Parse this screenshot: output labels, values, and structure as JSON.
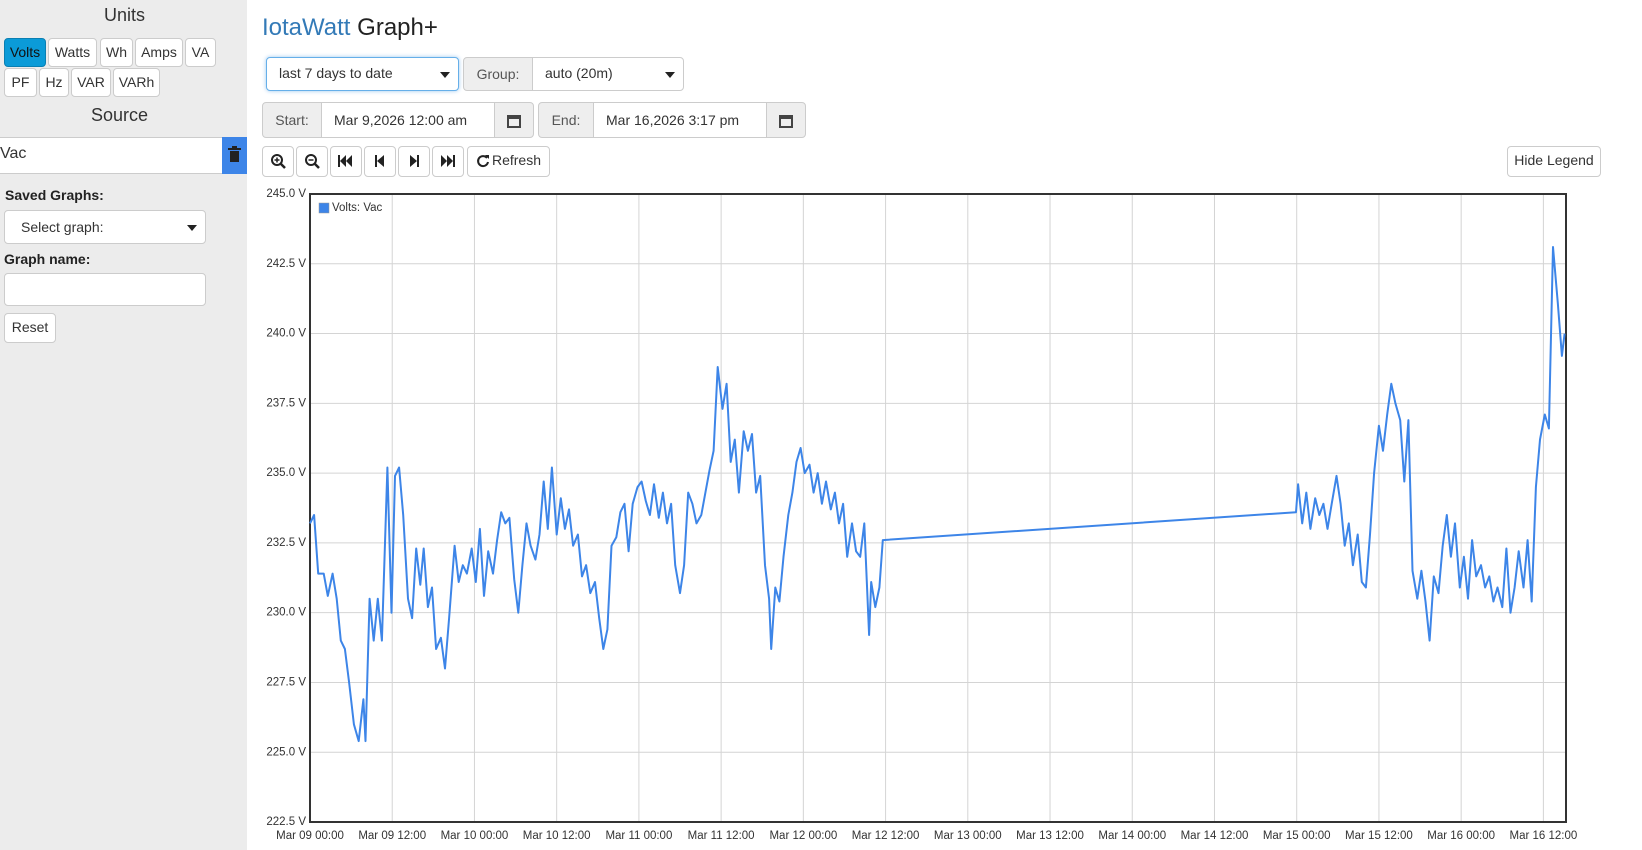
{
  "sidebar": {
    "units_title": "Units",
    "units": [
      "Volts",
      "Watts",
      "Wh",
      "Amps",
      "VA",
      "PF",
      "Hz",
      "VAR",
      "VARh"
    ],
    "source_title": "Source",
    "source": "Vac",
    "saved_graphs_label": "Saved Graphs:",
    "saved_graphs_select": "Select graph:",
    "graph_name_label": "Graph name:",
    "reset": "Reset"
  },
  "header": {
    "title_brand": "IotaWatt",
    "title_rest": "Graph+"
  },
  "controls": {
    "range": "last 7 days to date",
    "group_label": "Group:",
    "group": "auto (20m)",
    "start_label": "Start:",
    "start": "Mar 9,2026 12:00 am",
    "end_label": "End:",
    "end": "Mar 16,2026 3:17 pm",
    "refresh": "Refresh",
    "hide_legend": "Hide Legend"
  },
  "chart_data": {
    "type": "line",
    "color": "#3d85e8",
    "grid": true,
    "legend": "top-left",
    "xlim": [
      0,
      183.3
    ],
    "ylim": [
      222.5,
      245
    ],
    "xticks": [
      {
        "value": 0,
        "label": "Mar 09 00:00"
      },
      {
        "value": 12,
        "label": "Mar 09 12:00"
      },
      {
        "value": 24,
        "label": "Mar 10 00:00"
      },
      {
        "value": 36,
        "label": "Mar 10 12:00"
      },
      {
        "value": 48,
        "label": "Mar 11 00:00"
      },
      {
        "value": 60,
        "label": "Mar 11 12:00"
      },
      {
        "value": 72,
        "label": "Mar 12 00:00"
      },
      {
        "value": 84,
        "label": "Mar 12 12:00"
      },
      {
        "value": 96,
        "label": "Mar 13 00:00"
      },
      {
        "value": 108,
        "label": "Mar 13 12:00"
      },
      {
        "value": 120,
        "label": "Mar 14 00:00"
      },
      {
        "value": 132,
        "label": "Mar 14 12:00"
      },
      {
        "value": 144,
        "label": "Mar 15 00:00"
      },
      {
        "value": 156,
        "label": "Mar 15 12:00"
      },
      {
        "value": 168,
        "label": "Mar 16 00:00"
      },
      {
        "value": 180,
        "label": "Mar 16 12:00"
      }
    ],
    "yticks": [
      {
        "value": 222.5,
        "label": "222.5 V"
      },
      {
        "value": 225,
        "label": "225.0 V"
      },
      {
        "value": 227.5,
        "label": "227.5 V"
      },
      {
        "value": 230,
        "label": "230.0 V"
      },
      {
        "value": 232.5,
        "label": "232.5 V"
      },
      {
        "value": 235,
        "label": "235.0 V"
      },
      {
        "value": 237.5,
        "label": "237.5 V"
      },
      {
        "value": 240,
        "label": "240.0 V"
      },
      {
        "value": 242.5,
        "label": "242.5 V"
      },
      {
        "value": 245,
        "label": "245.0 V"
      }
    ],
    "x": [
      0,
      0.6,
      1.2,
      2.0,
      2.6,
      3.3,
      3.9,
      4.5,
      5.1,
      5.7,
      6.4,
      7.1,
      7.8,
      8.1,
      8.7,
      9.3,
      9.9,
      10.5,
      11.3,
      11.9,
      12.4,
      13.0,
      13.6,
      14.3,
      14.9,
      15.5,
      16.1,
      16.6,
      17.2,
      17.8,
      18.4,
      19.1,
      19.7,
      20.3,
      21.1,
      21.7,
      22.3,
      22.9,
      23.6,
      24.2,
      24.8,
      25.4,
      26.0,
      26.7,
      27.3,
      27.9,
      28.5,
      29.1,
      29.8,
      30.4,
      31.0,
      31.6,
      32.2,
      32.9,
      33.5,
      34.1,
      34.7,
      35.3,
      36.0,
      36.6,
      37.2,
      37.8,
      38.4,
      39.1,
      39.7,
      40.3,
      40.9,
      41.6,
      42.2,
      42.8,
      43.4,
      44.0,
      44.7,
      45.3,
      45.9,
      46.5,
      47.1,
      47.8,
      48.4,
      49.0,
      49.6,
      50.2,
      50.9,
      51.5,
      52.1,
      52.7,
      53.3,
      54.0,
      54.6,
      55.2,
      55.8,
      56.4,
      57.1,
      57.7,
      58.3,
      58.9,
      59.5,
      60.2,
      60.8,
      61.4,
      62.0,
      62.6,
      63.3,
      63.9,
      64.5,
      65.1,
      65.7,
      66.4,
      67.0,
      67.3,
      67.9,
      68.5,
      69.1,
      69.8,
      70.4,
      71.0,
      71.6,
      72.2,
      72.9,
      73.5,
      74.1,
      74.7,
      75.3,
      76.0,
      76.6,
      77.2,
      77.8,
      78.4,
      79.1,
      79.7,
      80.3,
      80.9,
      81.6,
      81.9,
      82.5,
      83.1,
      83.6,
      143.9,
      144.2,
      144.8,
      145.4,
      146.0,
      146.7,
      147.3,
      147.9,
      148.5,
      149.1,
      149.8,
      150.4,
      151.0,
      151.6,
      152.2,
      152.9,
      153.5,
      154.1,
      154.7,
      155.3,
      156.0,
      156.6,
      157.2,
      157.8,
      158.4,
      159.1,
      159.7,
      160.3,
      160.9,
      161.6,
      162.2,
      162.8,
      163.4,
      164.0,
      164.7,
      165.3,
      165.9,
      166.5,
      167.1,
      167.8,
      168.4,
      169.0,
      169.6,
      170.2,
      170.9,
      171.5,
      172.1,
      172.7,
      173.3,
      174.0,
      174.6,
      175.2,
      175.8,
      176.4,
      177.1,
      177.7,
      178.3,
      178.9,
      179.5,
      180.2,
      180.8,
      181.4,
      182.1,
      182.7,
      183.1
    ],
    "series": [
      {
        "name": "Volts: Vac",
        "color": "#3d85e8",
        "values": [
          233.2,
          233.5,
          231.4,
          231.4,
          230.6,
          231.4,
          230.5,
          229.0,
          228.7,
          227.5,
          226.0,
          225.4,
          226.9,
          225.4,
          230.5,
          229.0,
          230.5,
          229.0,
          235.2,
          230.0,
          234.9,
          235.2,
          233.5,
          230.5,
          229.8,
          232.3,
          231.0,
          232.3,
          230.2,
          230.9,
          228.7,
          229.1,
          228.0,
          229.8,
          232.4,
          231.1,
          231.7,
          231.4,
          232.3,
          231.1,
          233.0,
          230.6,
          232.2,
          231.4,
          232.6,
          233.6,
          233.2,
          233.4,
          231.2,
          230.0,
          231.7,
          233.2,
          232.4,
          231.9,
          232.8,
          234.7,
          233.0,
          235.2,
          232.8,
          234.1,
          233.0,
          233.7,
          232.4,
          232.8,
          231.3,
          231.7,
          230.7,
          231.1,
          229.8,
          228.7,
          229.4,
          232.4,
          232.7,
          233.6,
          233.9,
          232.2,
          233.9,
          234.5,
          234.7,
          234.0,
          233.5,
          234.6,
          233.4,
          234.3,
          233.2,
          233.9,
          231.7,
          230.7,
          231.7,
          234.3,
          233.9,
          233.2,
          233.5,
          234.3,
          235.1,
          235.8,
          238.8,
          237.3,
          238.2,
          235.4,
          236.2,
          234.3,
          236.5,
          235.8,
          236.4,
          234.3,
          234.9,
          231.7,
          230.5,
          228.7,
          230.9,
          230.4,
          232.0,
          233.5,
          234.3,
          235.4,
          235.9,
          235.0,
          235.3,
          234.3,
          235.0,
          233.9,
          234.7,
          233.7,
          234.3,
          233.2,
          233.9,
          232.0,
          233.2,
          232.2,
          232.0,
          233.2,
          229.2,
          231.1,
          230.2,
          230.9,
          232.6,
          233.6,
          234.6,
          233.2,
          234.3,
          233.0,
          234.1,
          233.5,
          233.9,
          233.0,
          233.9,
          234.9,
          233.9,
          232.4,
          233.2,
          231.7,
          232.8,
          231.1,
          230.9,
          232.8,
          235.0,
          236.7,
          235.8,
          237.1,
          238.2,
          237.5,
          236.9,
          234.7,
          236.9,
          231.5,
          230.5,
          231.5,
          230.4,
          229.0,
          231.3,
          230.7,
          232.4,
          233.5,
          232.0,
          233.2,
          230.9,
          232.0,
          230.5,
          232.6,
          231.3,
          231.7,
          230.9,
          231.3,
          230.4,
          230.9,
          230.2,
          232.3,
          230.0,
          230.9,
          232.2,
          230.9,
          232.6,
          230.4,
          234.5,
          236.2,
          237.1,
          236.6,
          243.1,
          241.1,
          239.2,
          240.0
        ]
      }
    ]
  }
}
